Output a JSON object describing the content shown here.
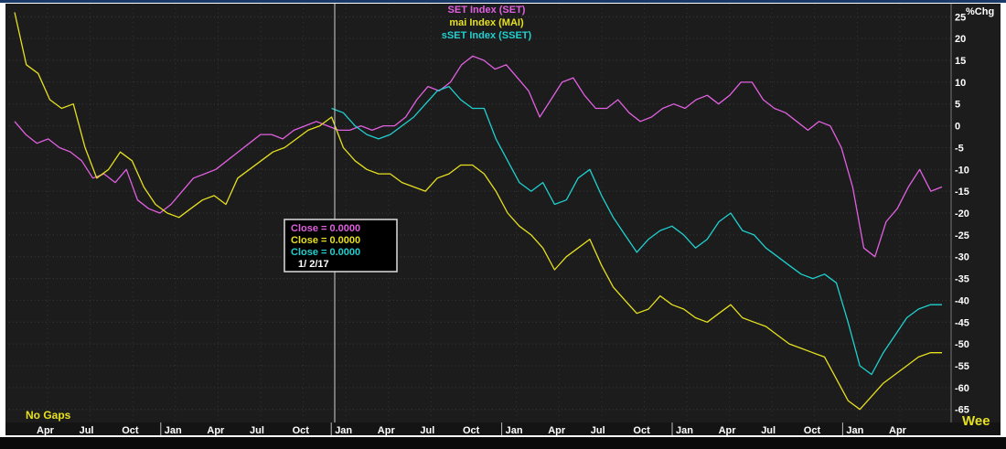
{
  "chart_data": {
    "type": "line",
    "ylabel": "%Chg",
    "ylim": [
      -68,
      28
    ],
    "yticks": [
      25,
      20,
      15,
      10,
      5,
      0,
      -5,
      -10,
      -15,
      -20,
      -25,
      -30,
      -35,
      -40,
      -45,
      -50,
      -55,
      -60,
      -65
    ],
    "x_tick_labels": [
      "Apr",
      "Jul",
      "Oct",
      "Jan",
      "Apr",
      "Jul",
      "Oct",
      "Jan",
      "Apr",
      "Jul",
      "Oct",
      "Jan",
      "Apr",
      "Jul",
      "Oct",
      "Jan",
      "Apr",
      "Jul",
      "Oct",
      "Jan",
      "Apr"
    ],
    "x_tick_year_starts": [
      3,
      7,
      11,
      15,
      19
    ],
    "grid": true,
    "legend_placement": "top-center",
    "series": [
      {
        "name": "SET Index (SET)",
        "color": "#e060e0",
        "values": [
          1,
          -2,
          -4,
          -3,
          -5,
          -6,
          -8,
          -12,
          -11,
          -13,
          -10,
          -17,
          -19,
          -20,
          -18,
          -15,
          -12,
          -11,
          -10,
          -8,
          -6,
          -4,
          -2,
          -2,
          -3,
          -1,
          0,
          1,
          0,
          -1,
          -1,
          0,
          -1,
          0,
          0,
          2,
          6,
          9,
          8,
          10,
          14,
          16,
          15,
          13,
          14,
          11,
          8,
          2,
          6,
          10,
          11,
          7,
          4,
          4,
          6,
          3,
          1,
          2,
          4,
          5,
          4,
          6,
          7,
          5,
          7,
          10,
          10,
          6,
          4,
          3,
          1,
          -1,
          1,
          0,
          -5,
          -14,
          -28,
          -30,
          -22,
          -19,
          -14,
          -10,
          -15,
          -14
        ]
      },
      {
        "name": "mai Index (MAI)",
        "color": "#e6e020",
        "values": [
          26,
          14,
          12,
          6,
          4,
          5,
          -5,
          -12,
          -10,
          -6,
          -8,
          -14,
          -18,
          -20,
          -21,
          -19,
          -17,
          -16,
          -18,
          -12,
          -10,
          -8,
          -6,
          -5,
          -3,
          -1,
          0,
          2,
          -5,
          -8,
          -10,
          -11,
          -11,
          -13,
          -14,
          -15,
          -12,
          -11,
          -9,
          -9,
          -11,
          -15,
          -20,
          -23,
          -25,
          -28,
          -33,
          -30,
          -28,
          -26,
          -32,
          -37,
          -40,
          -43,
          -42,
          -39,
          -41,
          -42,
          -44,
          -45,
          -43,
          -41,
          -44,
          -45,
          -46,
          -48,
          -50,
          -51,
          -52,
          -53,
          -58,
          -63,
          -65,
          -62,
          -59,
          -57,
          -55,
          -53,
          -52,
          -52
        ]
      },
      {
        "name": "sSET Index (SSET)",
        "color": "#20d0d0",
        "values": [
          null,
          null,
          null,
          null,
          null,
          null,
          null,
          null,
          null,
          null,
          null,
          null,
          null,
          null,
          null,
          null,
          null,
          null,
          null,
          null,
          null,
          null,
          null,
          null,
          null,
          null,
          null,
          4,
          3,
          0,
          -2,
          -3,
          -2,
          0,
          2,
          5,
          8,
          9,
          6,
          4,
          4,
          -3,
          -8,
          -13,
          -15,
          -13,
          -18,
          -17,
          -12,
          -10,
          -16,
          -21,
          -25,
          -29,
          -26,
          -24,
          -23,
          -25,
          -28,
          -26,
          -22,
          -20,
          -24,
          -25,
          -28,
          -30,
          -32,
          -34,
          -35,
          -34,
          -36,
          -45,
          -55,
          -57,
          -52,
          -48,
          -44,
          -42,
          -41,
          -41
        ]
      }
    ],
    "tooltip": {
      "lines": [
        {
          "label": "Close",
          "value": "0.0000",
          "color": "#e060e0"
        },
        {
          "label": "Close",
          "value": "0.0000",
          "color": "#e6e020"
        },
        {
          "label": "Close",
          "value": "0.0000",
          "color": "#20d0d0"
        }
      ],
      "date": "1/ 2/17"
    },
    "footer_left": "No Gaps",
    "footer_right": "Wee"
  }
}
